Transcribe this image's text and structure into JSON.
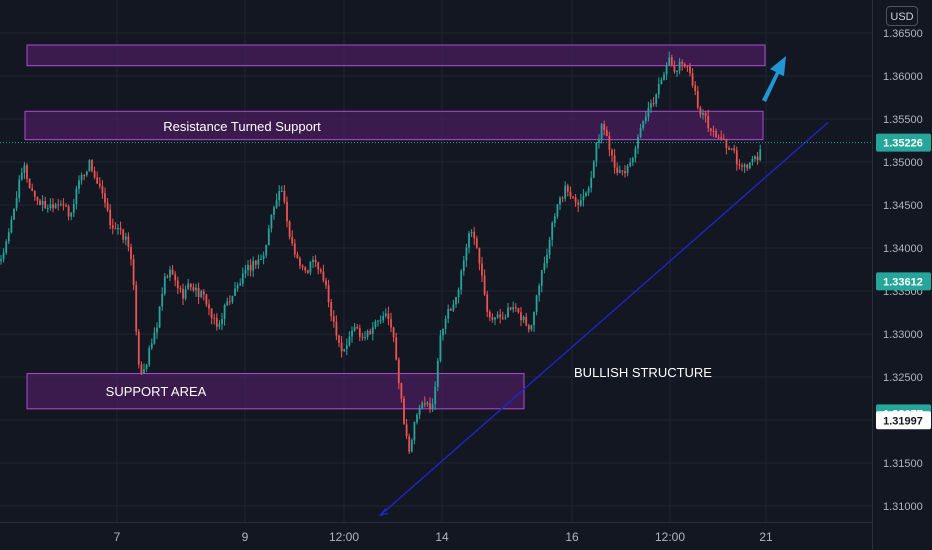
{
  "currency": "USD",
  "colors": {
    "background": "#131722",
    "grid": "#1f2431",
    "text": "#d1d4dc",
    "axis_text": "#b2b5be",
    "up": "#26a69a",
    "down": "#ef5350",
    "zone_fill": "#4a1e5c",
    "zone_stroke": "#b248d6",
    "trendline": "#2323c8",
    "arrow": "#2196d3",
    "price_line": "#26a69a"
  },
  "chart_data": {
    "type": "candlestick",
    "ylim": [
      1.3075,
      1.3667
    ],
    "y_ticks": [
      "1.31000",
      "1.31500",
      "1.32000",
      "1.32500",
      "1.33000",
      "1.33500",
      "1.34000",
      "1.34500",
      "1.35000",
      "1.35500",
      "1.36000",
      "1.36500"
    ],
    "x_ticks": [
      "7",
      "9",
      "12:00",
      "14",
      "16",
      "12:00",
      "21"
    ],
    "price_labels": [
      {
        "text": "1.35226",
        "value": 1.35226,
        "style": "filled"
      },
      {
        "text": "1.33612",
        "value": 1.33612,
        "style": "filled"
      },
      {
        "text": "1.32077",
        "value": 1.32077,
        "style": "filled"
      },
      {
        "text": "1.31997",
        "value": 1.31997,
        "style": "white"
      }
    ],
    "current_price": 1.35226,
    "zones": [
      {
        "from": 1.3612,
        "to": 1.3636,
        "label": ""
      },
      {
        "from": 1.3526,
        "to": 1.3559,
        "label": "Resistance Turned Support"
      },
      {
        "from": 1.3213,
        "to": 1.3254,
        "label": "SUPPORT AREA"
      }
    ],
    "trendline": {
      "start": 1.3089,
      "end": 1.3546
    },
    "annotations": [
      {
        "text": "BULLISH STRUCTURE"
      }
    ],
    "close_path": [
      [
        0,
        1.3385
      ],
      [
        8,
        1.341
      ],
      [
        16,
        1.346
      ],
      [
        24,
        1.3495
      ],
      [
        30,
        1.347
      ],
      [
        38,
        1.3455
      ],
      [
        46,
        1.3448
      ],
      [
        54,
        1.3452
      ],
      [
        62,
        1.3455
      ],
      [
        70,
        1.3432
      ],
      [
        78,
        1.3478
      ],
      [
        84,
        1.3487
      ],
      [
        90,
        1.35
      ],
      [
        96,
        1.3478
      ],
      [
        102,
        1.3462
      ],
      [
        110,
        1.343
      ],
      [
        118,
        1.342
      ],
      [
        126,
        1.341
      ],
      [
        132,
        1.3388
      ],
      [
        136,
        1.33
      ],
      [
        140,
        1.3255
      ],
      [
        146,
        1.3265
      ],
      [
        152,
        1.329
      ],
      [
        158,
        1.3315
      ],
      [
        164,
        1.336
      ],
      [
        170,
        1.3372
      ],
      [
        176,
        1.336
      ],
      [
        182,
        1.3345
      ],
      [
        190,
        1.3358
      ],
      [
        198,
        1.3348
      ],
      [
        206,
        1.334
      ],
      [
        212,
        1.3318
      ],
      [
        218,
        1.3305
      ],
      [
        224,
        1.333
      ],
      [
        232,
        1.3345
      ],
      [
        240,
        1.336
      ],
      [
        248,
        1.3375
      ],
      [
        256,
        1.3385
      ],
      [
        264,
        1.339
      ],
      [
        270,
        1.343
      ],
      [
        276,
        1.346
      ],
      [
        282,
        1.3468
      ],
      [
        288,
        1.342
      ],
      [
        294,
        1.34
      ],
      [
        300,
        1.338
      ],
      [
        306,
        1.337
      ],
      [
        312,
        1.3385
      ],
      [
        318,
        1.3378
      ],
      [
        324,
        1.3362
      ],
      [
        330,
        1.333
      ],
      [
        336,
        1.3305
      ],
      [
        342,
        1.328
      ],
      [
        348,
        1.329
      ],
      [
        354,
        1.331
      ],
      [
        362,
        1.3298
      ],
      [
        370,
        1.3305
      ],
      [
        378,
        1.3315
      ],
      [
        386,
        1.332
      ],
      [
        392,
        1.331
      ],
      [
        398,
        1.325
      ],
      [
        404,
        1.32
      ],
      [
        410,
        1.316
      ],
      [
        416,
        1.3205
      ],
      [
        422,
        1.3215
      ],
      [
        428,
        1.3218
      ],
      [
        434,
        1.322
      ],
      [
        440,
        1.33
      ],
      [
        446,
        1.332
      ],
      [
        452,
        1.333
      ],
      [
        458,
        1.335
      ],
      [
        464,
        1.339
      ],
      [
        470,
        1.342
      ],
      [
        476,
        1.341
      ],
      [
        482,
        1.337
      ],
      [
        488,
        1.3325
      ],
      [
        494,
        1.3318
      ],
      [
        500,
        1.332
      ],
      [
        506,
        1.3325
      ],
      [
        512,
        1.333
      ],
      [
        518,
        1.3322
      ],
      [
        524,
        1.3318
      ],
      [
        530,
        1.33
      ],
      [
        536,
        1.3345
      ],
      [
        542,
        1.3375
      ],
      [
        548,
        1.34
      ],
      [
        554,
        1.344
      ],
      [
        560,
        1.3455
      ],
      [
        566,
        1.347
      ],
      [
        572,
        1.346
      ],
      [
        578,
        1.3455
      ],
      [
        584,
        1.346
      ],
      [
        590,
        1.3478
      ],
      [
        596,
        1.3515
      ],
      [
        602,
        1.3545
      ],
      [
        608,
        1.3525
      ],
      [
        614,
        1.35
      ],
      [
        620,
        1.3485
      ],
      [
        626,
        1.349
      ],
      [
        632,
        1.3505
      ],
      [
        638,
        1.3525
      ],
      [
        644,
        1.3548
      ],
      [
        650,
        1.3562
      ],
      [
        656,
        1.3578
      ],
      [
        662,
        1.36
      ],
      [
        668,
        1.362
      ],
      [
        674,
        1.3605
      ],
      [
        680,
        1.3612
      ],
      [
        686,
        1.3618
      ],
      [
        692,
        1.3595
      ],
      [
        698,
        1.3565
      ],
      [
        704,
        1.3552
      ],
      [
        710,
        1.354
      ],
      [
        716,
        1.3528
      ],
      [
        722,
        1.353
      ],
      [
        728,
        1.3515
      ],
      [
        734,
        1.351
      ],
      [
        740,
        1.349
      ],
      [
        746,
        1.3495
      ],
      [
        752,
        1.35
      ],
      [
        758,
        1.3505
      ],
      [
        762,
        1.3522
      ]
    ]
  }
}
